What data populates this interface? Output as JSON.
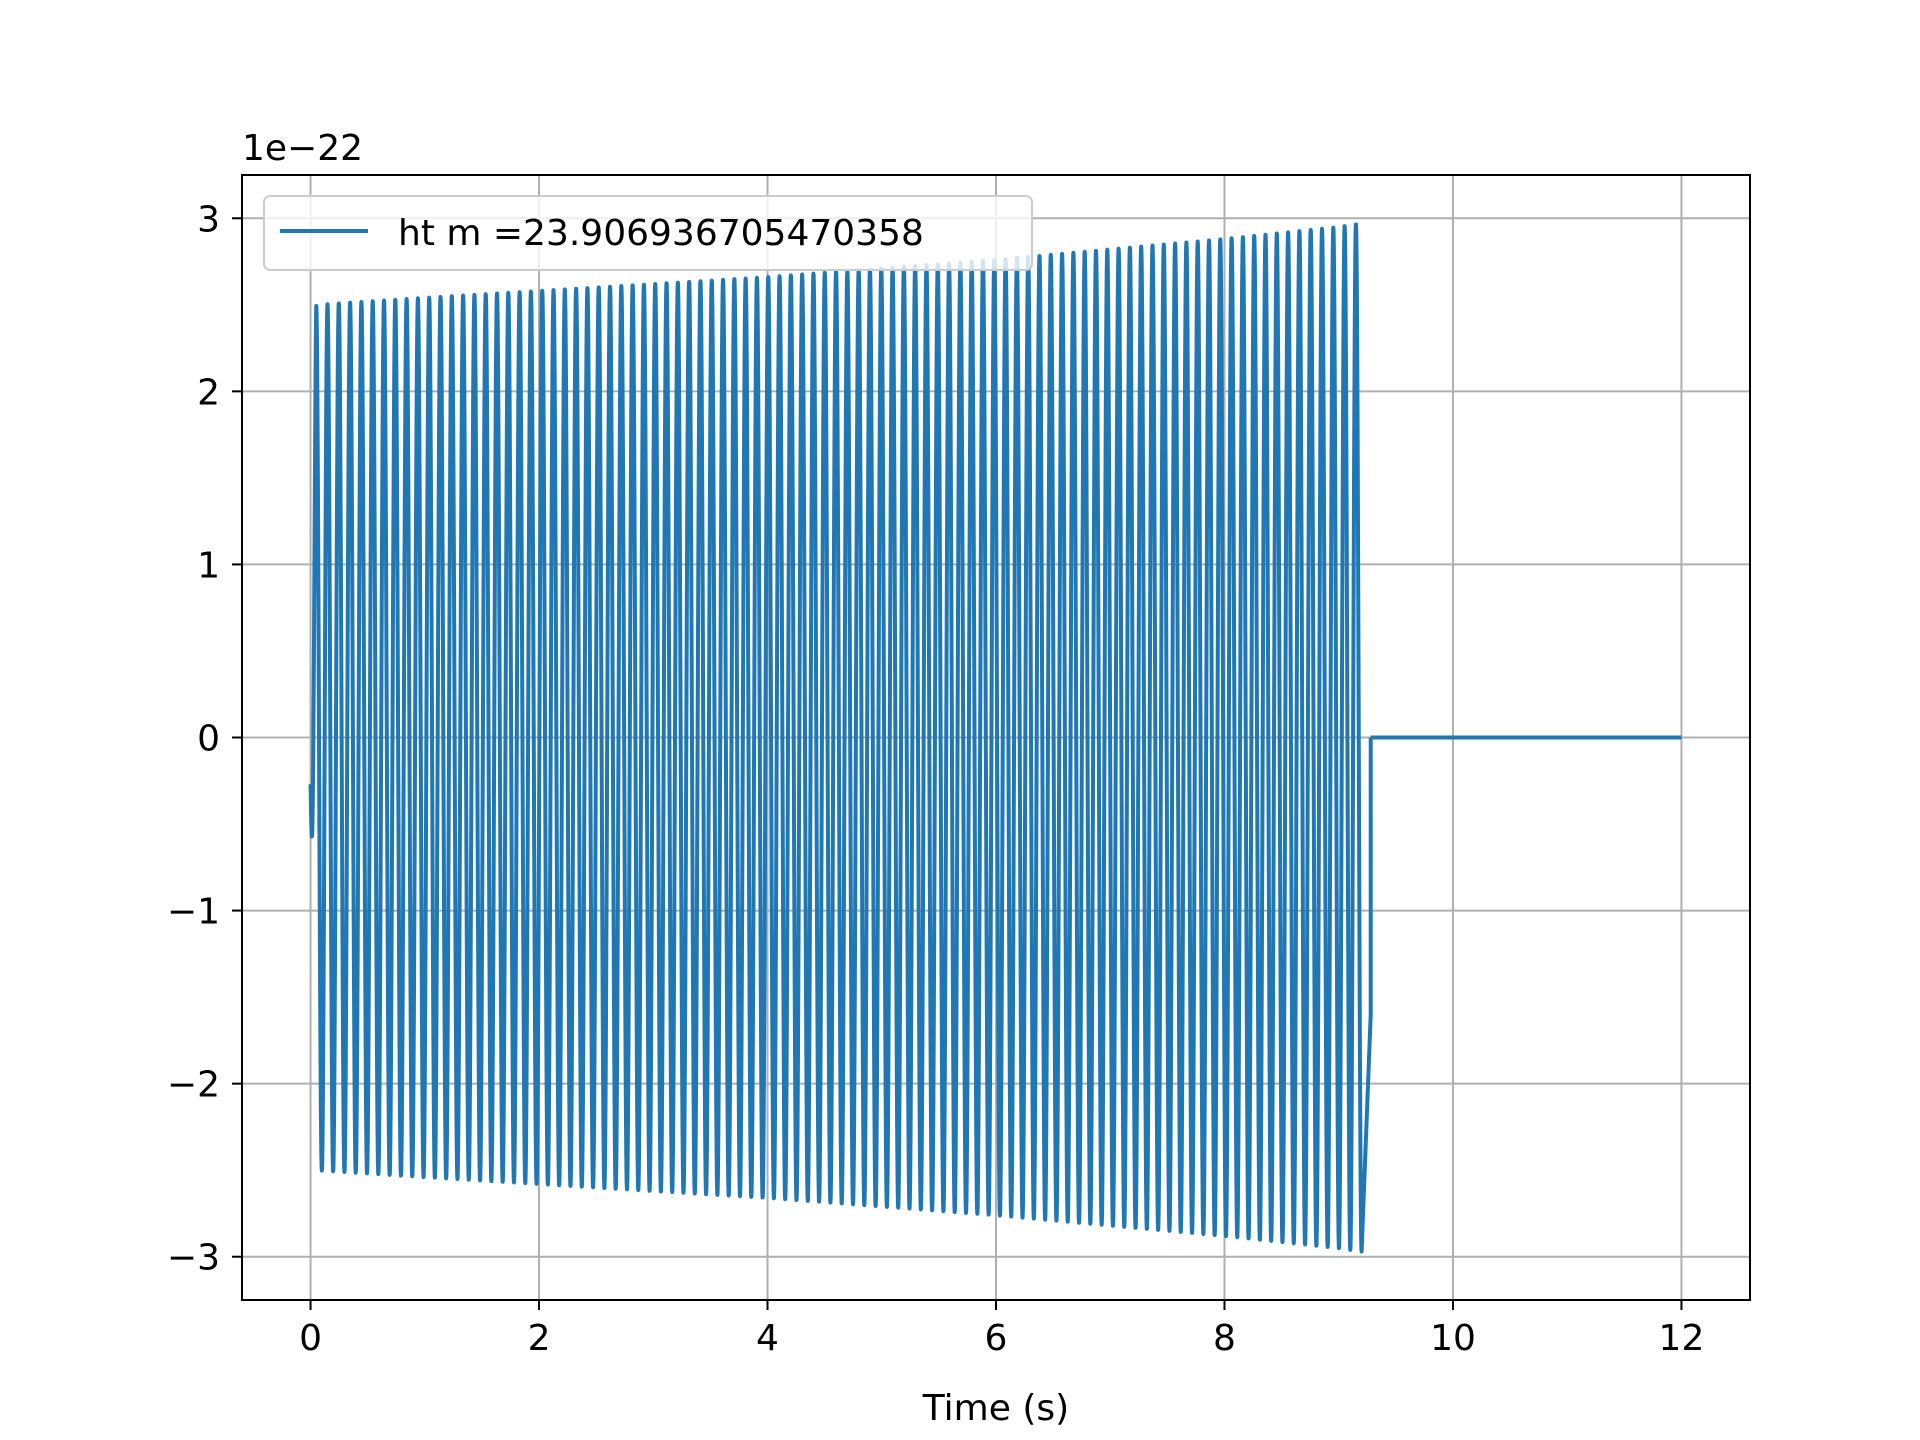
{
  "chart_data": {
    "type": "line",
    "title": "",
    "xlabel": "Time (s)",
    "ylabel": "",
    "y_offset_label": "1e−22",
    "xlim": [
      -0.6,
      12.6
    ],
    "ylim": [
      -3.25,
      3.25
    ],
    "x_ticks": [
      0,
      2,
      4,
      6,
      8,
      10,
      12
    ],
    "x_tick_labels": [
      "0",
      "2",
      "4",
      "6",
      "8",
      "10",
      "12"
    ],
    "y_ticks": [
      -3,
      -2,
      -1,
      0,
      1,
      2,
      3
    ],
    "y_tick_labels": [
      "−3",
      "−2",
      "−1",
      "0",
      "1",
      "2",
      "3"
    ],
    "grid": true,
    "legend_position": "upper-left",
    "color": "#1f77b4",
    "series": [
      {
        "name": "ht m =23.906936705470358",
        "envelope": {
          "x": [
            0,
            0.05,
            1,
            2,
            3,
            4,
            5,
            6,
            7,
            8,
            9,
            9.2
          ],
          "amplitude": [
            0.25,
            2.5,
            2.54,
            2.58,
            2.62,
            2.66,
            2.71,
            2.76,
            2.82,
            2.88,
            2.95,
            2.97
          ]
        },
        "cycles": 93,
        "start_value": -0.27,
        "last_point": [
          9.28,
          -1.6
        ],
        "flat_segment": {
          "x": [
            9.28,
            12
          ],
          "y": 0
        }
      }
    ]
  }
}
